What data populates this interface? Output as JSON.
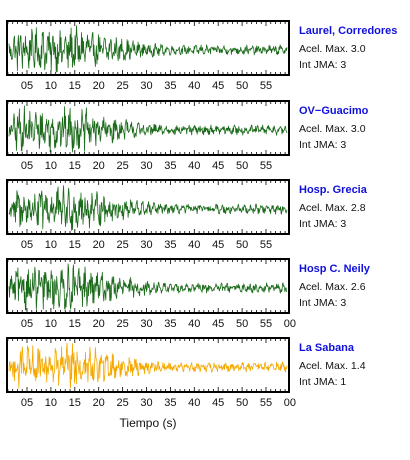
{
  "chart_data": {
    "type": "line",
    "xlabel": "Tiempo (s)",
    "tick_interval_s": 5,
    "panels": [
      {
        "name": "Laurel, Corredores",
        "line_color": "#1a6a1a",
        "accel_label": "Acel. Max. 3.0",
        "intensity_label": "Int JMA: 3",
        "tick_labels": [
          "05",
          "10",
          "15",
          "20",
          "25",
          "30",
          "35",
          "40",
          "45",
          "50",
          "55"
        ]
      },
      {
        "name": "OV−Guacimo",
        "line_color": "#1a6a1a",
        "accel_label": "Acel. Max. 3.0",
        "intensity_label": "Int JMA: 3",
        "tick_labels": [
          "05",
          "10",
          "15",
          "20",
          "25",
          "30",
          "35",
          "40",
          "45",
          "50",
          "55"
        ]
      },
      {
        "name": "Hosp. Grecia",
        "line_color": "#1a6a1a",
        "accel_label": "Acel. Max. 2.8",
        "intensity_label": "Int JMA: 3",
        "tick_labels": [
          "05",
          "10",
          "15",
          "20",
          "25",
          "30",
          "35",
          "40",
          "45",
          "50",
          "55"
        ]
      },
      {
        "name": "Hosp C. Neily",
        "line_color": "#1a6a1a",
        "accel_label": "Acel. Max. 2.6",
        "intensity_label": "Int JMA: 3",
        "tick_labels": [
          "05",
          "10",
          "15",
          "20",
          "25",
          "30",
          "35",
          "40",
          "45",
          "50",
          "55",
          "00"
        ]
      },
      {
        "name": "La Sabana",
        "line_color": "#f5a800",
        "accel_label": "Acel. Max. 1.4",
        "intensity_label": "Int JMA: 1",
        "tick_labels": [
          "05",
          "10",
          "15",
          "20",
          "25",
          "30",
          "35",
          "40",
          "45",
          "50",
          "55",
          "00"
        ]
      }
    ]
  }
}
